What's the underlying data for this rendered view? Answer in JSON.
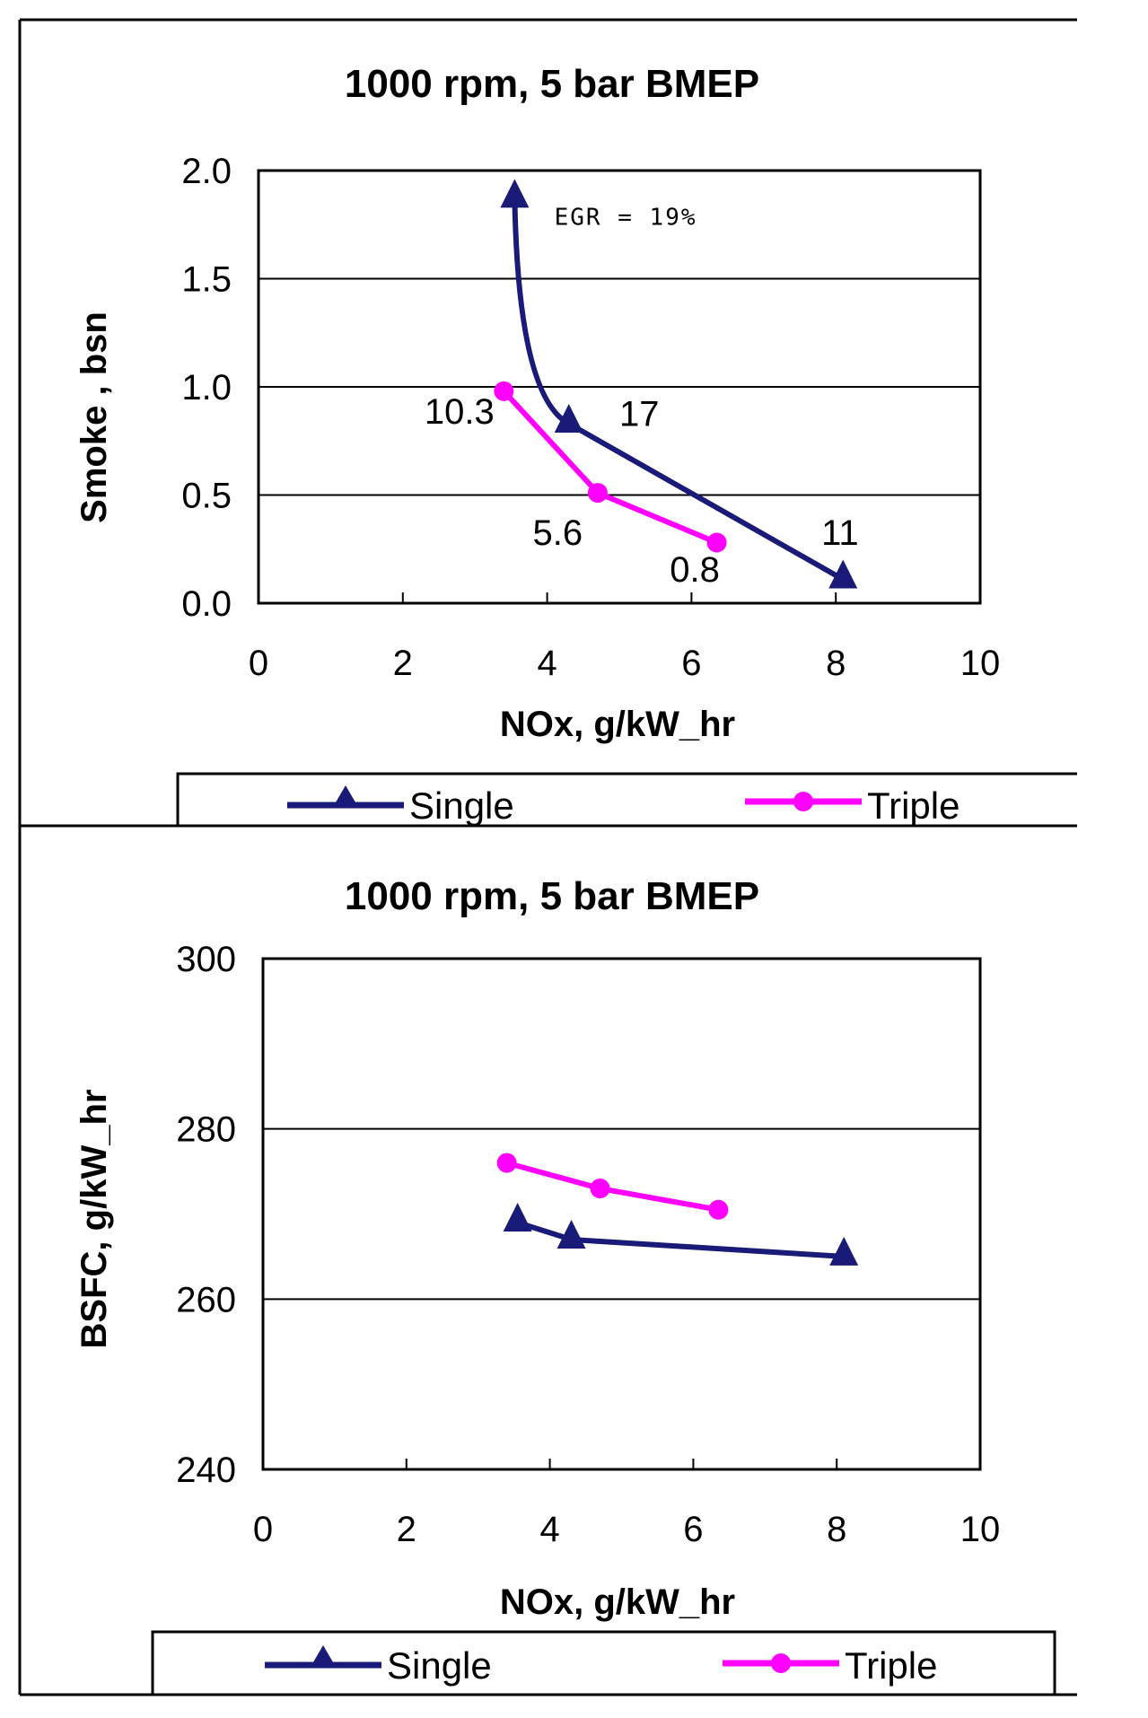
{
  "colors": {
    "single": "#1a1a78",
    "triple": "#ff00ff"
  },
  "chart_data": [
    {
      "type": "line",
      "title": "1000 rpm,  5 bar BMEP",
      "xlabel": "NOx, g/kW_hr",
      "ylabel": "Smoke , bsn",
      "xlim": [
        0,
        10
      ],
      "ylim": [
        0,
        2
      ],
      "xticks": [
        "0",
        "2",
        "4",
        "6",
        "8",
        "10"
      ],
      "yticks": [
        "0.0",
        "0.5",
        "1.0",
        "1.5",
        "2.0"
      ],
      "series": [
        {
          "name": "Single",
          "marker": "triangle",
          "x": [
            3.55,
            4.3,
            8.1
          ],
          "y": [
            1.87,
            0.83,
            0.11
          ]
        },
        {
          "name": "Triple",
          "marker": "circle",
          "x": [
            3.4,
            4.7,
            6.35
          ],
          "y": [
            0.98,
            0.51,
            0.28
          ]
        }
      ],
      "annotations": [
        {
          "text": "EGR = 19%",
          "x": 4.1,
          "y": 1.75
        },
        {
          "text": "17",
          "x": 5.0,
          "y": 0.82
        },
        {
          "text": "10.3",
          "x": 2.3,
          "y": 0.83
        },
        {
          "text": "5.6",
          "x": 3.8,
          "y": 0.27
        },
        {
          "text": "0.8",
          "x": 5.7,
          "y": 0.1
        },
        {
          "text": "11",
          "x": 7.8,
          "y": 0.27
        }
      ],
      "legend": {
        "position": "bottom",
        "entries": [
          "Single",
          "Triple"
        ]
      }
    },
    {
      "type": "line",
      "title": "1000 rpm,  5 bar BMEP",
      "xlabel": "NOx, g/kW_hr",
      "ylabel": "BSFC, g/kW_hr",
      "xlim": [
        0,
        10
      ],
      "ylim": [
        240,
        300
      ],
      "xticks": [
        "0",
        "2",
        "4",
        "6",
        "8",
        "10"
      ],
      "yticks": [
        "240",
        "260",
        "280",
        "300"
      ],
      "series": [
        {
          "name": "Single",
          "marker": "triangle",
          "x": [
            3.55,
            4.3,
            8.1
          ],
          "y": [
            269,
            267,
            265
          ]
        },
        {
          "name": "Triple",
          "marker": "circle",
          "x": [
            3.4,
            4.7,
            6.35
          ],
          "y": [
            276,
            273,
            270.5
          ]
        }
      ],
      "legend": {
        "position": "bottom",
        "entries": [
          "Single",
          "Triple"
        ]
      }
    }
  ]
}
